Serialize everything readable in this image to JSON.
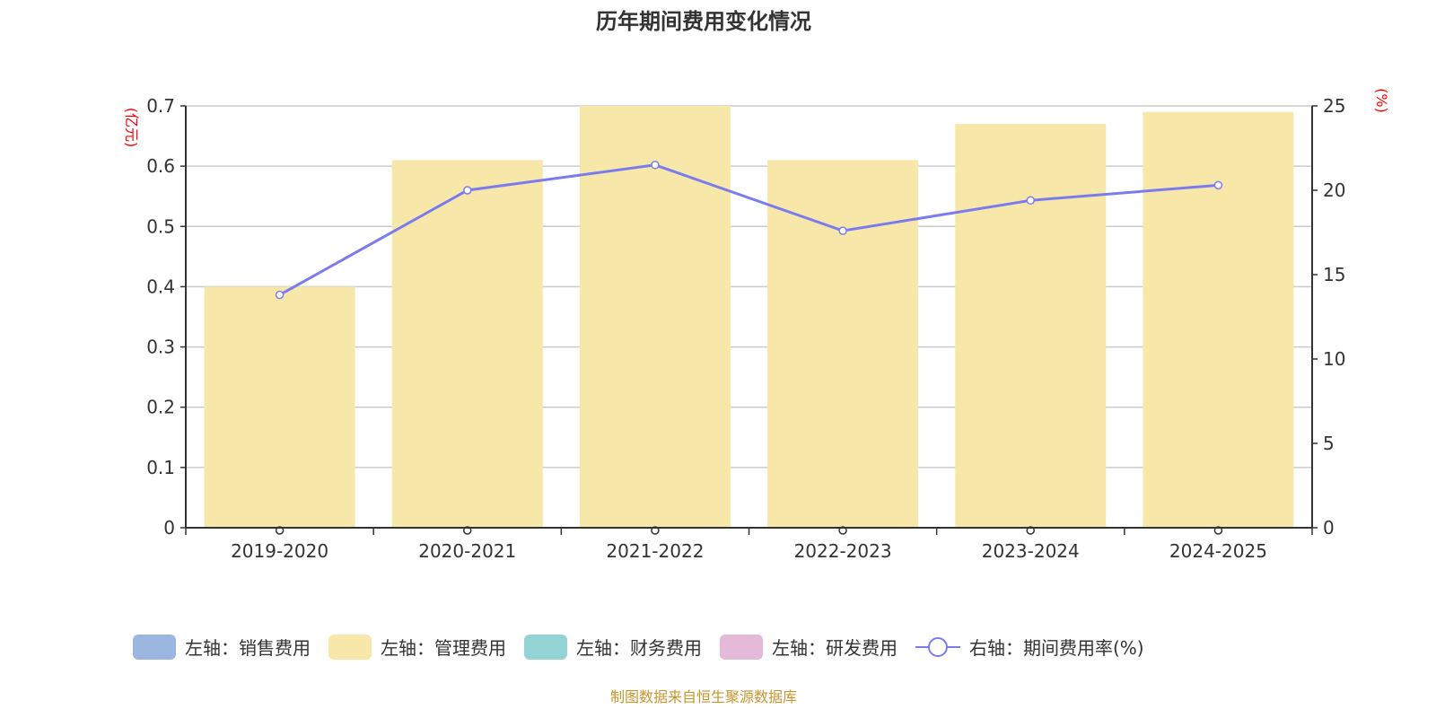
{
  "title": "历年期间费用变化情况",
  "source": "制图数据来自恒生聚源数据库",
  "chart_data": {
    "type": "bar+line",
    "categories": [
      "2019-2020",
      "2020-2021",
      "2021-2022",
      "2022-2023",
      "2023-2024",
      "2024-2025"
    ],
    "left_axis": {
      "label": "(亿元)",
      "range": [
        0,
        0.7
      ],
      "ticks": [
        "0",
        "0.1",
        "0.2",
        "0.3",
        "0.4",
        "0.5",
        "0.6",
        "0.7"
      ]
    },
    "right_axis": {
      "label": "(%)",
      "range": [
        0,
        25
      ],
      "ticks": [
        "0",
        "5",
        "10",
        "15",
        "20",
        "25"
      ]
    },
    "grid": true,
    "legend_position": "bottom",
    "series": [
      {
        "name": "左轴：销售费用",
        "type": "bar",
        "axis": "left",
        "color": "#9bb7e0",
        "values": [
          0,
          0,
          0,
          0,
          0,
          0
        ]
      },
      {
        "name": "左轴：管理费用",
        "type": "bar",
        "axis": "left",
        "color": "#f7e7a8",
        "values": [
          0.4,
          0.61,
          0.7,
          0.61,
          0.67,
          0.69
        ]
      },
      {
        "name": "左轴：财务费用",
        "type": "bar",
        "axis": "left",
        "color": "#94d3d4",
        "values": [
          0,
          0,
          0,
          0,
          0,
          0
        ]
      },
      {
        "name": "左轴：研发费用",
        "type": "bar",
        "axis": "left",
        "color": "#e5b9d8",
        "values": [
          0,
          0,
          0,
          0,
          0,
          0
        ]
      },
      {
        "name": "右轴：期间费用率(%)",
        "type": "line",
        "axis": "right",
        "color": "#7b7bf0",
        "values": [
          13.8,
          20.0,
          21.5,
          17.6,
          19.4,
          20.3
        ]
      }
    ]
  }
}
